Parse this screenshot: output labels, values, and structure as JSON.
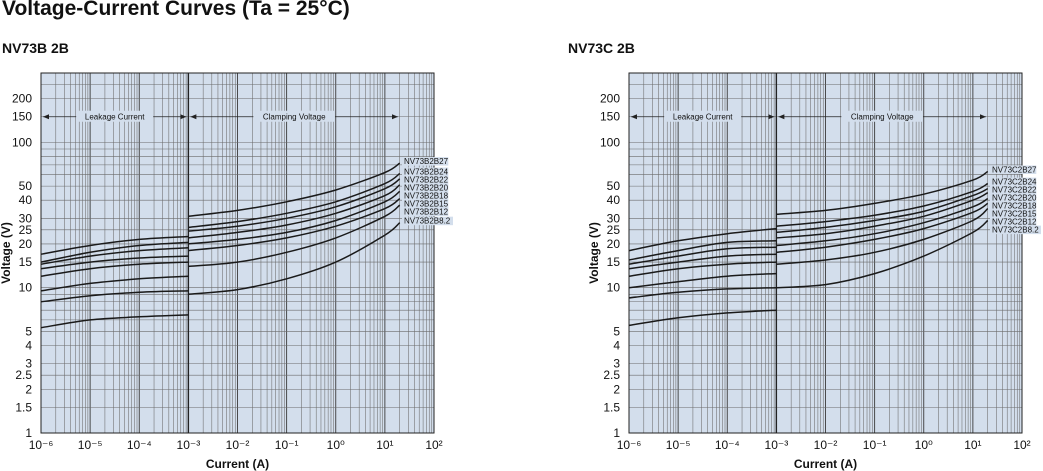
{
  "title": "Voltage-Current Curves (Ta = 25°C)",
  "chart_data": [
    {
      "type": "line",
      "title": "NV73B 2B",
      "xlabel": "Current (A)",
      "ylabel": "Voltage (V)",
      "xscale": "log",
      "yscale": "log",
      "xlim": [
        1e-06,
        100
      ],
      "ylim": [
        1,
        300
      ],
      "grid": true,
      "x_tick_labels": [
        "10⁻⁶",
        "10⁻⁵",
        "10⁻⁴",
        "10⁻³",
        "10⁻²",
        "10⁻¹",
        "10⁰",
        "10¹",
        "10²"
      ],
      "y_tick_labels": [
        "1",
        "1.5",
        "2",
        "2.5",
        "3",
        "4",
        "5",
        "10",
        "15",
        "20",
        "25",
        "30",
        "40",
        "50",
        "100",
        "150",
        "200"
      ],
      "region_labels": [
        "Leakage Current",
        "Clamping Voltage"
      ],
      "region_split_x": 0.001,
      "series": [
        {
          "name": "NV73B2B27",
          "leakage": {
            "x": [
              1e-06,
              1e-05,
              0.0001,
              0.001
            ],
            "y": [
              17,
              19.5,
              21.5,
              22.5
            ]
          },
          "clamp": {
            "x": [
              0.001,
              0.01,
              0.1,
              1,
              10,
              20
            ],
            "y": [
              31,
              34,
              39,
              47,
              62,
              72
            ]
          }
        },
        {
          "name": "NV73B2B24",
          "leakage": {
            "x": [
              1e-06,
              1e-05,
              0.0001,
              0.001
            ],
            "y": [
              15,
              17.5,
              19.5,
              20.5
            ]
          },
          "clamp": {
            "x": [
              0.001,
              0.01,
              0.1,
              1,
              10,
              20
            ],
            "y": [
              26,
              28.5,
              32.5,
              39,
              52,
              61
            ]
          }
        },
        {
          "name": "NV73B2B22",
          "leakage": {
            "x": [
              1e-06,
              1e-05,
              0.0001,
              0.001
            ],
            "y": [
              14.5,
              16.5,
              18,
              18.8
            ]
          },
          "clamp": {
            "x": [
              0.001,
              0.01,
              0.1,
              1,
              10,
              20
            ],
            "y": [
              24.5,
              26.5,
              30,
              36,
              48,
              56
            ]
          }
        },
        {
          "name": "NV73B2B20",
          "leakage": {
            "x": [
              1e-06,
              1e-05,
              0.0001,
              0.001
            ],
            "y": [
              13.5,
              15,
              16,
              16.5
            ]
          },
          "clamp": {
            "x": [
              0.001,
              0.01,
              0.1,
              1,
              10,
              20
            ],
            "y": [
              22,
              24,
              27,
              32.5,
              43,
              51
            ]
          }
        },
        {
          "name": "NV73B2B18",
          "leakage": {
            "x": [
              1e-06,
              1e-05,
              0.0001,
              0.001
            ],
            "y": [
              12,
              13.5,
              14.5,
              15
            ]
          },
          "clamp": {
            "x": [
              0.001,
              0.01,
              0.1,
              1,
              10,
              20
            ],
            "y": [
              20,
              21.5,
              24,
              29,
              39,
              46
            ]
          }
        },
        {
          "name": "NV73B2B15",
          "leakage": {
            "x": [
              1e-06,
              1e-05,
              0.0001,
              0.001
            ],
            "y": [
              9.5,
              10.7,
              11.5,
              12
            ]
          },
          "clamp": {
            "x": [
              0.001,
              0.01,
              0.1,
              1,
              10,
              20
            ],
            "y": [
              18,
              19.5,
              22,
              26.5,
              35,
              41
            ]
          }
        },
        {
          "name": "NV73B2B12",
          "leakage": {
            "x": [
              1e-06,
              1e-05,
              0.0001,
              0.001
            ],
            "y": [
              8,
              8.8,
              9.3,
              9.5
            ]
          },
          "clamp": {
            "x": [
              0.001,
              0.01,
              0.1,
              1,
              10,
              20
            ],
            "y": [
              14,
              15,
              17.5,
              22,
              31,
              37
            ]
          }
        },
        {
          "name": "NV73B2B8.2",
          "leakage": {
            "x": [
              1e-06,
              1e-05,
              0.0001,
              0.001
            ],
            "y": [
              5.3,
              6,
              6.3,
              6.5
            ]
          },
          "clamp": {
            "x": [
              0.001,
              0.01,
              0.1,
              1,
              10,
              20
            ],
            "y": [
              9,
              9.7,
              11.5,
              15,
              23,
              28
            ]
          }
        }
      ]
    },
    {
      "type": "line",
      "title": "NV73C 2B",
      "xlabel": "Current (A)",
      "ylabel": "Voltage (V)",
      "xscale": "log",
      "yscale": "log",
      "xlim": [
        1e-06,
        100
      ],
      "ylim": [
        1,
        300
      ],
      "grid": true,
      "x_tick_labels": [
        "10⁻⁶",
        "10⁻⁵",
        "10⁻⁴",
        "10⁻³",
        "10⁻²",
        "10⁻¹",
        "10⁰",
        "10¹",
        "10²"
      ],
      "y_tick_labels": [
        "1",
        "1.5",
        "2",
        "2.5",
        "3",
        "4",
        "5",
        "10",
        "15",
        "20",
        "25",
        "30",
        "40",
        "50",
        "100",
        "150",
        "200"
      ],
      "region_labels": [
        "Leakage Current",
        "Clamping Voltage"
      ],
      "region_split_x": 0.001,
      "series": [
        {
          "name": "NV73C2B27",
          "leakage": {
            "x": [
              1e-06,
              1e-05,
              0.0001,
              0.001
            ],
            "y": [
              18,
              21,
              23.5,
              25.5
            ]
          },
          "clamp": {
            "x": [
              0.001,
              0.01,
              0.1,
              1,
              10,
              20
            ],
            "y": [
              32,
              34,
              38,
              44,
              55,
              63
            ]
          }
        },
        {
          "name": "NV73C2B24",
          "leakage": {
            "x": [
              1e-06,
              1e-05,
              0.0001,
              0.001
            ],
            "y": [
              15.5,
              18,
              20.5,
              21
            ]
          },
          "clamp": {
            "x": [
              0.001,
              0.01,
              0.1,
              1,
              10,
              20
            ],
            "y": [
              26.5,
              28.5,
              31.5,
              36.5,
              46,
              52
            ]
          }
        },
        {
          "name": "NV73C2B22",
          "leakage": {
            "x": [
              1e-06,
              1e-05,
              0.0001,
              0.001
            ],
            "y": [
              14.5,
              16.5,
              18.5,
              19
            ]
          },
          "clamp": {
            "x": [
              0.001,
              0.01,
              0.1,
              1,
              10,
              20
            ],
            "y": [
              24,
              26,
              29,
              33.5,
              43,
              48
            ]
          }
        },
        {
          "name": "NV73C2B20",
          "leakage": {
            "x": [
              1e-06,
              1e-05,
              0.0001,
              0.001
            ],
            "y": [
              13.5,
              15,
              16.5,
              17
            ]
          },
          "clamp": {
            "x": [
              0.001,
              0.01,
              0.1,
              1,
              10,
              20
            ],
            "y": [
              22,
              23.5,
              26.5,
              31,
              40,
              45
            ]
          }
        },
        {
          "name": "NV73C2B18",
          "leakage": {
            "x": [
              1e-06,
              1e-05,
              0.0001,
              0.001
            ],
            "y": [
              12,
              13.5,
              14.5,
              15
            ]
          },
          "clamp": {
            "x": [
              0.001,
              0.01,
              0.1,
              1,
              10,
              20
            ],
            "y": [
              19.5,
              21,
              23.5,
              28,
              36,
              41
            ]
          }
        },
        {
          "name": "NV73C2B15",
          "leakage": {
            "x": [
              1e-06,
              1e-05,
              0.0001,
              0.001
            ],
            "y": [
              10,
              11,
              12,
              12.5
            ]
          },
          "clamp": {
            "x": [
              0.001,
              0.01,
              0.1,
              1,
              10,
              20
            ],
            "y": [
              17.5,
              19,
              21.5,
              25.5,
              33,
              38
            ]
          }
        },
        {
          "name": "NV73C2B12",
          "leakage": {
            "x": [
              1e-06,
              1e-05,
              0.0001,
              0.001
            ],
            "y": [
              8.5,
              9.3,
              9.8,
              10
            ]
          },
          "clamp": {
            "x": [
              0.001,
              0.01,
              0.1,
              1,
              10,
              20
            ],
            "y": [
              14.5,
              15.5,
              17.5,
              21.5,
              29,
              35
            ]
          }
        },
        {
          "name": "NV73C2B8.2",
          "leakage": {
            "x": [
              1e-06,
              1e-05,
              0.0001,
              0.001
            ],
            "y": [
              5.5,
              6.2,
              6.7,
              7
            ]
          },
          "clamp": {
            "x": [
              0.001,
              0.01,
              0.1,
              1,
              10,
              20
            ],
            "y": [
              10,
              10.5,
              12.5,
              16.5,
              24,
              29
            ]
          }
        }
      ]
    }
  ]
}
